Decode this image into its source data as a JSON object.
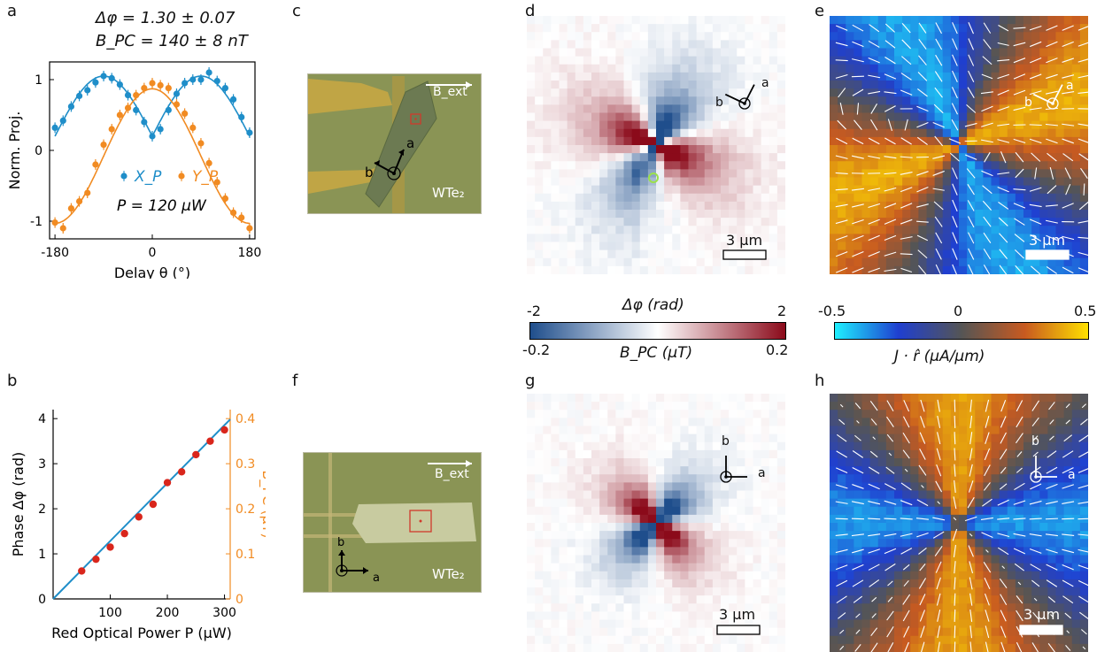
{
  "panels": {
    "a": "a",
    "b": "b",
    "c": "c",
    "d": "d",
    "e": "e",
    "f": "f",
    "g": "g",
    "h": "h"
  },
  "panel_a": {
    "annot1": "Δφ = 1.30 ± 0.07",
    "annot2": "B_PC = 140 ± 8 nT",
    "annot3": "P = 120 μW",
    "legend_x": "X_P",
    "legend_y": "Y_P"
  },
  "micro_c": {
    "field": "B_ext",
    "material": "WTe₂",
    "axis_a": "a",
    "axis_b": "b"
  },
  "micro_f": {
    "field": "B_ext",
    "material": "WTe₂",
    "axis_a": "a",
    "axis_b": "b"
  },
  "maps": {
    "scale": "3 μm",
    "axis_a": "a",
    "axis_b": "b"
  },
  "colorbar_left": {
    "top_label": "Δφ (rad)",
    "bottom_label": "B_PC (μT)",
    "top_min": "-2",
    "top_max": "2",
    "bottom_min": "-0.2",
    "bottom_max": "0.2",
    "colors": [
      "#1f4e8c",
      "#ffffff",
      "#8b0a1a"
    ]
  },
  "colorbar_right": {
    "label": "J · r̂ (μA/μm)",
    "min": "-0.5",
    "mid": "0",
    "max": "0.5",
    "colors": [
      "#1ff0ff",
      "#1f3fd0",
      "#555555",
      "#c85a20",
      "#ffe000"
    ]
  },
  "chart_data": [
    {
      "type": "line",
      "panel": "a",
      "xlabel": "Delay θ (°)",
      "ylabel": "Norm. Proj.",
      "xlim": [
        -190,
        190
      ],
      "ylim": [
        -1.25,
        1.25
      ],
      "xticks": [
        "-180",
        "0",
        "180"
      ],
      "yticks": [
        "-1",
        "0",
        "1"
      ],
      "series": [
        {
          "name": "X_P",
          "color": "#1f8ec9",
          "x": [
            -180,
            -165,
            -150,
            -135,
            -120,
            -105,
            -90,
            -75,
            -60,
            -45,
            -30,
            -15,
            0,
            15,
            30,
            45,
            60,
            75,
            90,
            105,
            120,
            135,
            150,
            165,
            180
          ],
          "y": [
            0.32,
            0.42,
            0.62,
            0.77,
            0.85,
            0.96,
            1.05,
            1.02,
            0.93,
            0.78,
            0.57,
            0.4,
            0.2,
            0.3,
            0.57,
            0.8,
            0.95,
            1.0,
            1.0,
            1.1,
            0.98,
            0.88,
            0.72,
            0.47,
            0.25
          ]
        },
        {
          "name": "Y_P",
          "color": "#f18b22",
          "x": [
            -180,
            -165,
            -150,
            -135,
            -120,
            -105,
            -90,
            -75,
            -60,
            -45,
            -30,
            -15,
            0,
            15,
            30,
            45,
            60,
            75,
            90,
            105,
            120,
            135,
            150,
            165,
            180
          ],
          "y": [
            -1.02,
            -1.1,
            -0.82,
            -0.72,
            -0.6,
            -0.2,
            0.08,
            0.3,
            0.5,
            0.6,
            0.78,
            0.88,
            0.95,
            0.92,
            0.88,
            0.65,
            0.52,
            0.32,
            0.1,
            -0.18,
            -0.45,
            -0.68,
            -0.88,
            -0.95,
            -1.1
          ]
        }
      ]
    },
    {
      "type": "scatter",
      "panel": "b",
      "xlabel": "Red Optical Power P (μW)",
      "ylabel": "Phase Δφ (rad)",
      "y2label": "B_PC (μT)",
      "xlim": [
        0,
        310
      ],
      "ylim": [
        0,
        4.2
      ],
      "y2lim": [
        0,
        0.42
      ],
      "xticks": [
        "100",
        "200",
        "300"
      ],
      "yticks": [
        "0",
        "1",
        "2",
        "3",
        "4"
      ],
      "y2ticks": [
        "0",
        "0.1",
        "0.2",
        "0.3",
        "0.4"
      ],
      "fit_slope": 0.01285,
      "x": [
        50,
        75,
        100,
        125,
        150,
        175,
        200,
        225,
        250,
        275,
        300
      ],
      "y": [
        0.62,
        0.88,
        1.15,
        1.45,
        1.82,
        2.1,
        2.58,
        2.82,
        3.2,
        3.5,
        3.75
      ]
    }
  ]
}
